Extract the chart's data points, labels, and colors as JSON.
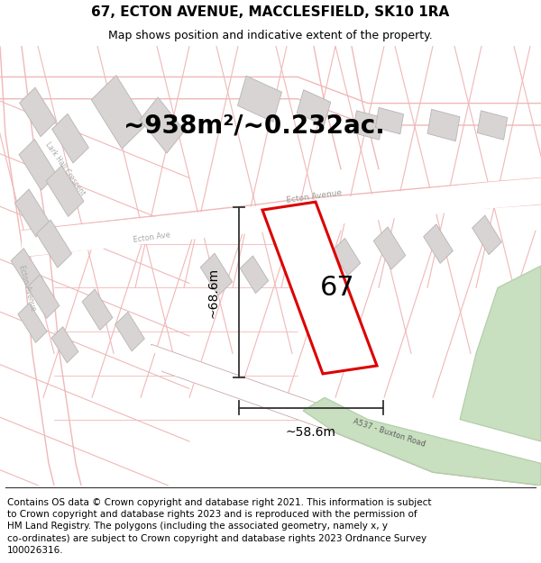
{
  "title_line1": "67, ECTON AVENUE, MACCLESFIELD, SK10 1RA",
  "title_line2": "Map shows position and indicative extent of the property.",
  "area_text": "~938m²/~0.232ac.",
  "label_67": "67",
  "dim_height": "~68.6m",
  "dim_width": "~58.6m",
  "footer_lines": [
    "Contains OS data © Crown copyright and database right 2021. This information is subject",
    "to Crown copyright and database rights 2023 and is reproduced with the permission of",
    "HM Land Registry. The polygons (including the associated geometry, namely x, y",
    "co-ordinates) are subject to Crown copyright and database rights 2023 Ordnance Survey",
    "100026316."
  ],
  "map_bg": "#ffffff",
  "road_outline_color": "#f0b8b8",
  "road_fill_color": "#faf0f0",
  "highlight_color": "#dd0000",
  "green_color": "#c8dfc0",
  "green_edge": "#b0cca8",
  "building_fill": "#d8d4d4",
  "building_edge": "#b8b4b4",
  "dim_line_color": "#333333",
  "road_label_color": "#888888",
  "title_fontsize": 11,
  "subtitle_fontsize": 9,
  "area_fontsize": 20,
  "label_fontsize": 22,
  "dim_fontsize": 10,
  "footer_fontsize": 7.5
}
